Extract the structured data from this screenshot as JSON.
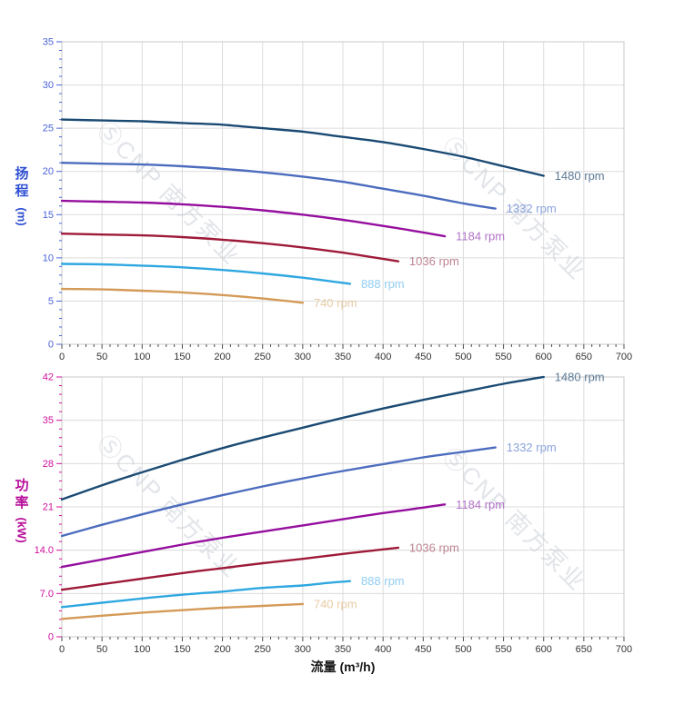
{
  "flow_axis": {
    "title": "流量 (m³/h)",
    "min": 0,
    "max": 700,
    "major_step": 50,
    "minor_step": 10,
    "tick_labels": [
      "0",
      "50",
      "100",
      "150",
      "200",
      "250",
      "300",
      "350",
      "400",
      "450",
      "500",
      "550",
      "600",
      "650",
      "700"
    ],
    "tick_label_color": "#333333",
    "tick_color": "#4d4d4d"
  },
  "watermark": {
    "text": "ⓈCNP 南方泵业",
    "color": "#c9cfd8"
  },
  "palette": {
    "grid": "#dcdcdc",
    "border": "#c8c8c8",
    "background": "#ffffff"
  },
  "chart_data": [
    {
      "type": "line",
      "name": "head-vs-flow",
      "title": "",
      "ylabel": "扬程",
      "ylabel_unit": "(m)",
      "xlabel": "流量 (m³/h)",
      "xlim": [
        0,
        700
      ],
      "ylim": [
        0,
        35
      ],
      "y_major": 5,
      "y_minor": 1,
      "ytick_labels": [
        "0",
        "5",
        "10",
        "15",
        "20",
        "25",
        "30",
        "35"
      ],
      "axis_title_color": "#2f50d2",
      "tick_color": "#4a63d8",
      "grid": true,
      "legend_position": "curve-end-labels",
      "series": [
        {
          "name": "1480 rpm",
          "color": "#1a4a73",
          "label_color": "#5b7a96",
          "points": [
            [
              0,
              26
            ],
            [
              50,
              25.9
            ],
            [
              100,
              25.8
            ],
            [
              150,
              25.6
            ],
            [
              200,
              25.4
            ],
            [
              250,
              25
            ],
            [
              300,
              24.6
            ],
            [
              350,
              24
            ],
            [
              400,
              23.4
            ],
            [
              450,
              22.6
            ],
            [
              500,
              21.7
            ],
            [
              550,
              20.6
            ],
            [
              600,
              19.5
            ]
          ]
        },
        {
          "name": "1332 rpm",
          "color": "#4c6cbe",
          "label_color": "#8aa2dd",
          "points": [
            [
              0,
              21
            ],
            [
              50,
              20.9
            ],
            [
              100,
              20.8
            ],
            [
              150,
              20.6
            ],
            [
              200,
              20.3
            ],
            [
              250,
              19.9
            ],
            [
              300,
              19.4
            ],
            [
              350,
              18.8
            ],
            [
              400,
              18
            ],
            [
              450,
              17.2
            ],
            [
              500,
              16.3
            ],
            [
              540,
              15.7
            ]
          ]
        },
        {
          "name": "1184 rpm",
          "color": "#950f9e",
          "label_color": "#b273c8",
          "points": [
            [
              0,
              16.6
            ],
            [
              50,
              16.5
            ],
            [
              100,
              16.4
            ],
            [
              150,
              16.2
            ],
            [
              200,
              15.9
            ],
            [
              250,
              15.5
            ],
            [
              300,
              15
            ],
            [
              350,
              14.4
            ],
            [
              400,
              13.7
            ],
            [
              440,
              13.1
            ],
            [
              477,
              12.5
            ]
          ]
        },
        {
          "name": "1036 rpm",
          "color": "#9e1a39",
          "label_color": "#bd8492",
          "points": [
            [
              0,
              12.8
            ],
            [
              50,
              12.7
            ],
            [
              100,
              12.6
            ],
            [
              150,
              12.4
            ],
            [
              200,
              12.1
            ],
            [
              250,
              11.7
            ],
            [
              300,
              11.2
            ],
            [
              350,
              10.6
            ],
            [
              385,
              10.1
            ],
            [
              419,
              9.6
            ]
          ]
        },
        {
          "name": "888 rpm",
          "color": "#2fa7e0",
          "label_color": "#92cdf2",
          "points": [
            [
              0,
              9.3
            ],
            [
              50,
              9.25
            ],
            [
              100,
              9.1
            ],
            [
              150,
              8.9
            ],
            [
              200,
              8.6
            ],
            [
              250,
              8.2
            ],
            [
              300,
              7.7
            ],
            [
              330,
              7.35
            ],
            [
              359,
              7
            ]
          ]
        },
        {
          "name": "740 rpm",
          "color": "#d49a58",
          "label_color": "#e7cba4",
          "points": [
            [
              0,
              6.4
            ],
            [
              50,
              6.35
            ],
            [
              100,
              6.2
            ],
            [
              150,
              6
            ],
            [
              200,
              5.7
            ],
            [
              250,
              5.3
            ],
            [
              300,
              4.8
            ]
          ]
        }
      ]
    },
    {
      "type": "line",
      "name": "power-vs-flow",
      "title": "",
      "ylabel": "功率",
      "ylabel_unit": "(kW)",
      "xlabel": "流量 (m³/h)",
      "xlim": [
        0,
        700
      ],
      "ylim": [
        0,
        42
      ],
      "y_major": 7,
      "y_minor": 1.4,
      "ytick_labels": [
        "0",
        "7.0",
        "14.0",
        "21",
        "28",
        "35",
        "42"
      ],
      "axis_title_color": "#b80d9a",
      "tick_color": "#cf109c",
      "grid": true,
      "legend_position": "curve-end-labels",
      "series": [
        {
          "name": "1480 rpm",
          "color": "#1a4a73",
          "label_color": "#5b7a96",
          "points": [
            [
              0,
              22.2
            ],
            [
              50,
              24.5
            ],
            [
              100,
              26.6
            ],
            [
              150,
              28.6
            ],
            [
              200,
              30.5
            ],
            [
              250,
              32.2
            ],
            [
              300,
              33.8
            ],
            [
              350,
              35.4
            ],
            [
              400,
              36.9
            ],
            [
              450,
              38.3
            ],
            [
              500,
              39.6
            ],
            [
              550,
              40.9
            ],
            [
              600,
              42
            ]
          ]
        },
        {
          "name": "1332 rpm",
          "color": "#4c6cbe",
          "label_color": "#8aa2dd",
          "points": [
            [
              0,
              16.3
            ],
            [
              50,
              18.1
            ],
            [
              100,
              19.8
            ],
            [
              150,
              21.4
            ],
            [
              200,
              22.9
            ],
            [
              250,
              24.3
            ],
            [
              300,
              25.6
            ],
            [
              350,
              26.8
            ],
            [
              400,
              27.9
            ],
            [
              450,
              29
            ],
            [
              500,
              29.9
            ],
            [
              540,
              30.6
            ]
          ]
        },
        {
          "name": "1184 rpm",
          "color": "#950f9e",
          "label_color": "#b273c8",
          "points": [
            [
              0,
              11.3
            ],
            [
              50,
              12.5
            ],
            [
              100,
              13.7
            ],
            [
              150,
              14.9
            ],
            [
              200,
              16
            ],
            [
              250,
              17
            ],
            [
              300,
              18
            ],
            [
              350,
              19
            ],
            [
              400,
              20
            ],
            [
              440,
              20.7
            ],
            [
              477,
              21.4
            ]
          ]
        },
        {
          "name": "1036 rpm",
          "color": "#9e1a39",
          "label_color": "#bd8492",
          "points": [
            [
              0,
              7.6
            ],
            [
              50,
              8.5
            ],
            [
              100,
              9.4
            ],
            [
              150,
              10.3
            ],
            [
              200,
              11.1
            ],
            [
              250,
              11.9
            ],
            [
              300,
              12.6
            ],
            [
              350,
              13.4
            ],
            [
              385,
              13.9
            ],
            [
              419,
              14.4
            ]
          ]
        },
        {
          "name": "888 rpm",
          "color": "#2fa7e0",
          "label_color": "#92cdf2",
          "points": [
            [
              0,
              4.8
            ],
            [
              50,
              5.5
            ],
            [
              100,
              6.2
            ],
            [
              150,
              6.8
            ],
            [
              200,
              7.3
            ],
            [
              250,
              7.9
            ],
            [
              300,
              8.3
            ],
            [
              330,
              8.7
            ],
            [
              359,
              9
            ]
          ]
        },
        {
          "name": "740 rpm",
          "color": "#d49a58",
          "label_color": "#e7cba4",
          "points": [
            [
              0,
              2.9
            ],
            [
              50,
              3.4
            ],
            [
              100,
              3.9
            ],
            [
              150,
              4.3
            ],
            [
              200,
              4.7
            ],
            [
              250,
              5
            ],
            [
              300,
              5.3
            ]
          ]
        }
      ]
    }
  ]
}
